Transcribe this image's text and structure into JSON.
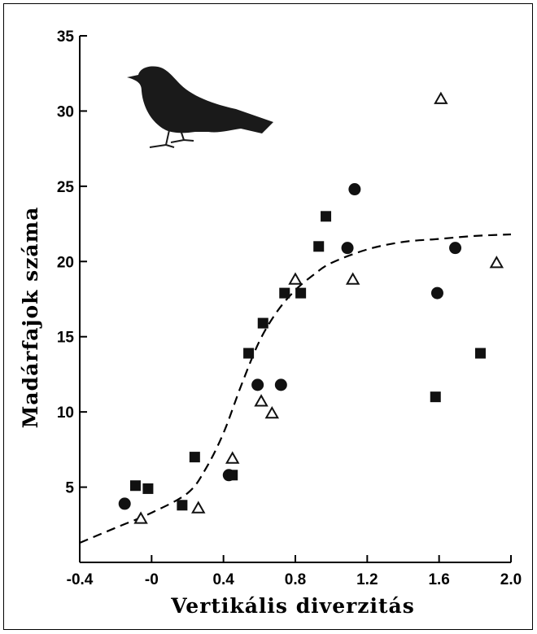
{
  "chart_data": {
    "type": "scatter",
    "title": "",
    "xlabel": "Vertikális diverzitás",
    "ylabel": "Madárfajok száma",
    "xlim": [
      -0.4,
      2.0
    ],
    "ylim": [
      0,
      35
    ],
    "x_tick_labels": [
      "-0.4",
      "-0",
      "0.4",
      "0.8",
      "1.2",
      "1.6",
      "2.0"
    ],
    "x_ticks": [
      -0.4,
      0,
      0.4,
      0.8,
      1.2,
      1.6,
      2.0
    ],
    "y_tick_labels": [
      "5",
      "10",
      "15",
      "20",
      "25",
      "30",
      "35"
    ],
    "y_ticks": [
      5,
      10,
      15,
      20,
      25,
      30,
      35
    ],
    "grid": false,
    "series": [
      {
        "marker": "circle",
        "color": "#111111",
        "points": [
          [
            -0.15,
            3.9
          ],
          [
            0.43,
            5.8
          ],
          [
            0.59,
            11.8
          ],
          [
            0.72,
            11.8
          ],
          [
            1.09,
            20.9
          ],
          [
            1.13,
            24.8
          ],
          [
            1.59,
            17.9
          ],
          [
            1.69,
            20.9
          ]
        ]
      },
      {
        "marker": "square",
        "color": "#111111",
        "points": [
          [
            -0.09,
            5.1
          ],
          [
            -0.02,
            4.9
          ],
          [
            0.17,
            3.8
          ],
          [
            0.24,
            7.0
          ],
          [
            0.45,
            5.8
          ],
          [
            0.54,
            13.9
          ],
          [
            0.62,
            15.9
          ],
          [
            0.74,
            17.9
          ],
          [
            0.83,
            17.9
          ],
          [
            0.93,
            21.0
          ],
          [
            0.97,
            23.0
          ],
          [
            1.58,
            11.0
          ],
          [
            1.83,
            13.9
          ]
        ]
      },
      {
        "marker": "triangle-open",
        "color": "#111111",
        "points": [
          [
            -0.06,
            2.9
          ],
          [
            0.26,
            3.6
          ],
          [
            0.45,
            6.9
          ],
          [
            0.61,
            10.7
          ],
          [
            0.67,
            9.9
          ],
          [
            0.8,
            18.8
          ],
          [
            1.12,
            18.8
          ],
          [
            1.61,
            30.8
          ],
          [
            1.92,
            19.9
          ]
        ]
      }
    ],
    "fit_curve": {
      "style": "dashed",
      "points": [
        [
          -0.4,
          1.3
        ],
        [
          -0.2,
          2.3
        ],
        [
          0.0,
          3.3
        ],
        [
          0.2,
          4.6
        ],
        [
          0.3,
          6.2
        ],
        [
          0.4,
          8.6
        ],
        [
          0.5,
          11.8
        ],
        [
          0.6,
          14.7
        ],
        [
          0.7,
          16.7
        ],
        [
          0.8,
          18.1
        ],
        [
          0.9,
          19.1
        ],
        [
          1.0,
          19.9
        ],
        [
          1.2,
          20.8
        ],
        [
          1.4,
          21.3
        ],
        [
          1.6,
          21.5
        ],
        [
          1.8,
          21.7
        ],
        [
          2.0,
          21.8
        ]
      ]
    }
  },
  "icons": {
    "bird": "bird-silhouette-icon"
  }
}
